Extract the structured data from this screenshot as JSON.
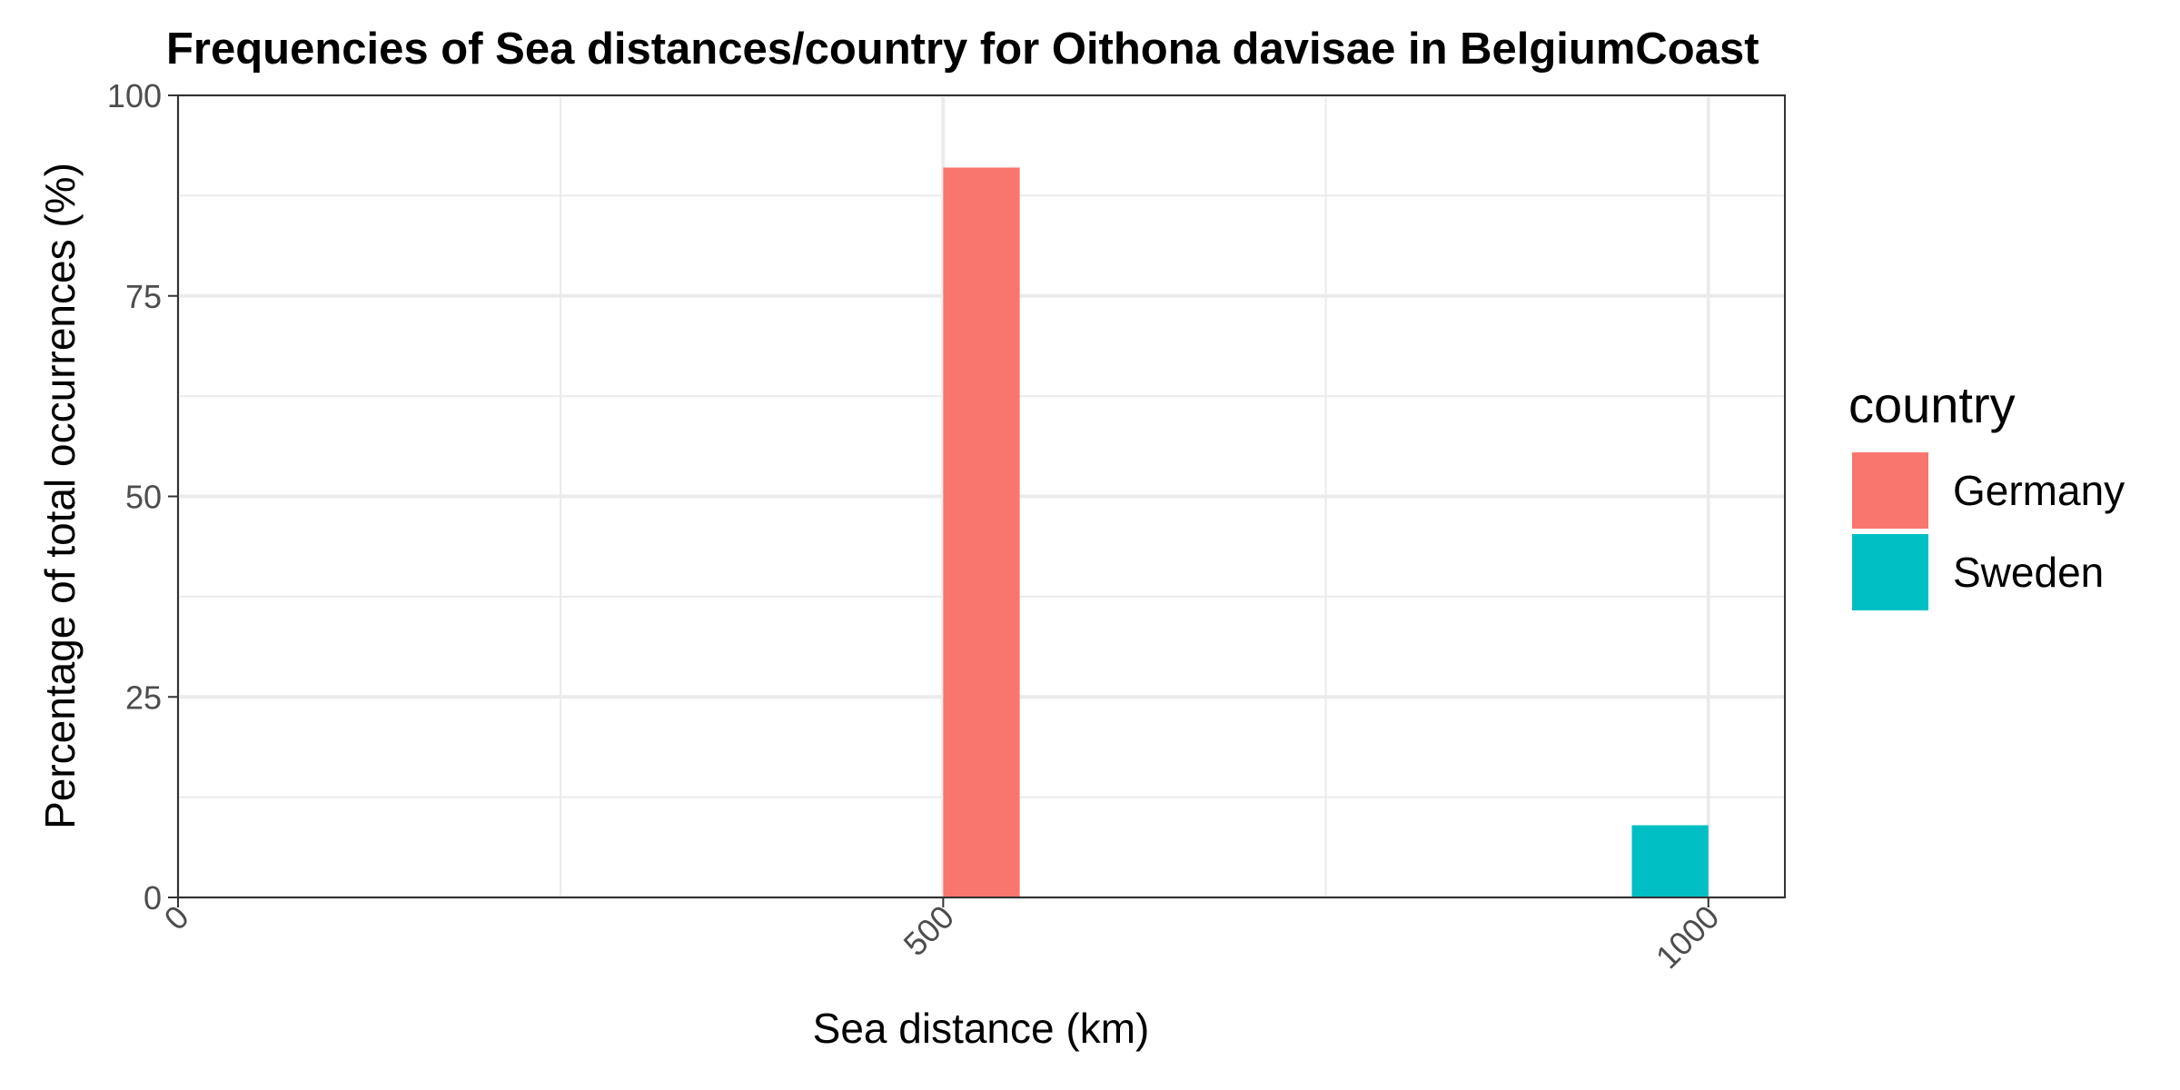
{
  "chart_data": {
    "type": "bar",
    "title": "Frequencies of Sea distances/country for Oithona davisae in BelgiumCoast",
    "xlabel": "Sea distance (km)",
    "ylabel": "Percentage of total occurrences (%)",
    "xlim": [
      0,
      1050
    ],
    "ylim": [
      0,
      100
    ],
    "x_ticks": [
      0,
      500,
      1000
    ],
    "y_ticks": [
      0,
      25,
      50,
      75,
      100
    ],
    "bin_width": 50,
    "grid": true,
    "legend_title": "country",
    "legend_position": "right",
    "series": [
      {
        "name": "Germany",
        "color": "#F8766D",
        "x": [
          525
        ],
        "values": [
          91
        ]
      },
      {
        "name": "Sweden",
        "color": "#00BFC4",
        "x": [
          975
        ],
        "values": [
          9
        ]
      }
    ]
  }
}
